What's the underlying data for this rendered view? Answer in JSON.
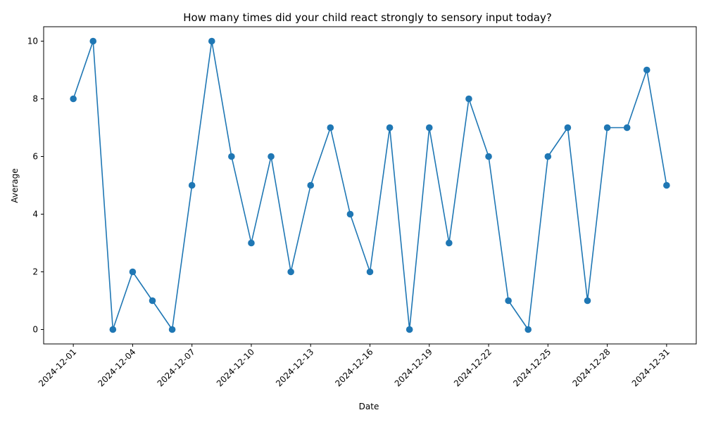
{
  "chart_data": {
    "type": "line",
    "title": "How many times did your child react strongly to sensory input today?",
    "xlabel": "Date",
    "ylabel": "Average",
    "x": [
      "2024-12-01",
      "2024-12-02",
      "2024-12-03",
      "2024-12-04",
      "2024-12-05",
      "2024-12-06",
      "2024-12-07",
      "2024-12-08",
      "2024-12-09",
      "2024-12-10",
      "2024-12-11",
      "2024-12-12",
      "2024-12-13",
      "2024-12-14",
      "2024-12-15",
      "2024-12-16",
      "2024-12-17",
      "2024-12-18",
      "2024-12-19",
      "2024-12-20",
      "2024-12-21",
      "2024-12-22",
      "2024-12-23",
      "2024-12-24",
      "2024-12-25",
      "2024-12-26",
      "2024-12-27",
      "2024-12-28",
      "2024-12-29",
      "2024-12-30",
      "2024-12-31"
    ],
    "values": [
      8,
      10,
      0,
      2,
      1,
      0,
      5,
      10,
      6,
      3,
      6,
      2,
      5,
      7,
      4,
      2,
      7,
      0,
      7,
      3,
      8,
      6,
      1,
      0,
      6,
      7,
      1,
      7,
      7,
      9,
      5
    ],
    "xticks": [
      "2024-12-01",
      "2024-12-04",
      "2024-12-07",
      "2024-12-10",
      "2024-12-13",
      "2024-12-16",
      "2024-12-19",
      "2024-12-22",
      "2024-12-25",
      "2024-12-28",
      "2024-12-31"
    ],
    "yticks": [
      "0",
      "2",
      "4",
      "6",
      "8",
      "10"
    ],
    "ylim": [
      -0.5,
      10.5
    ],
    "xlim": [
      "2024-11-29T12:00",
      "2025-01-01T12:00"
    ],
    "grid": false,
    "marker": "circle",
    "color": "#1f77b4"
  }
}
